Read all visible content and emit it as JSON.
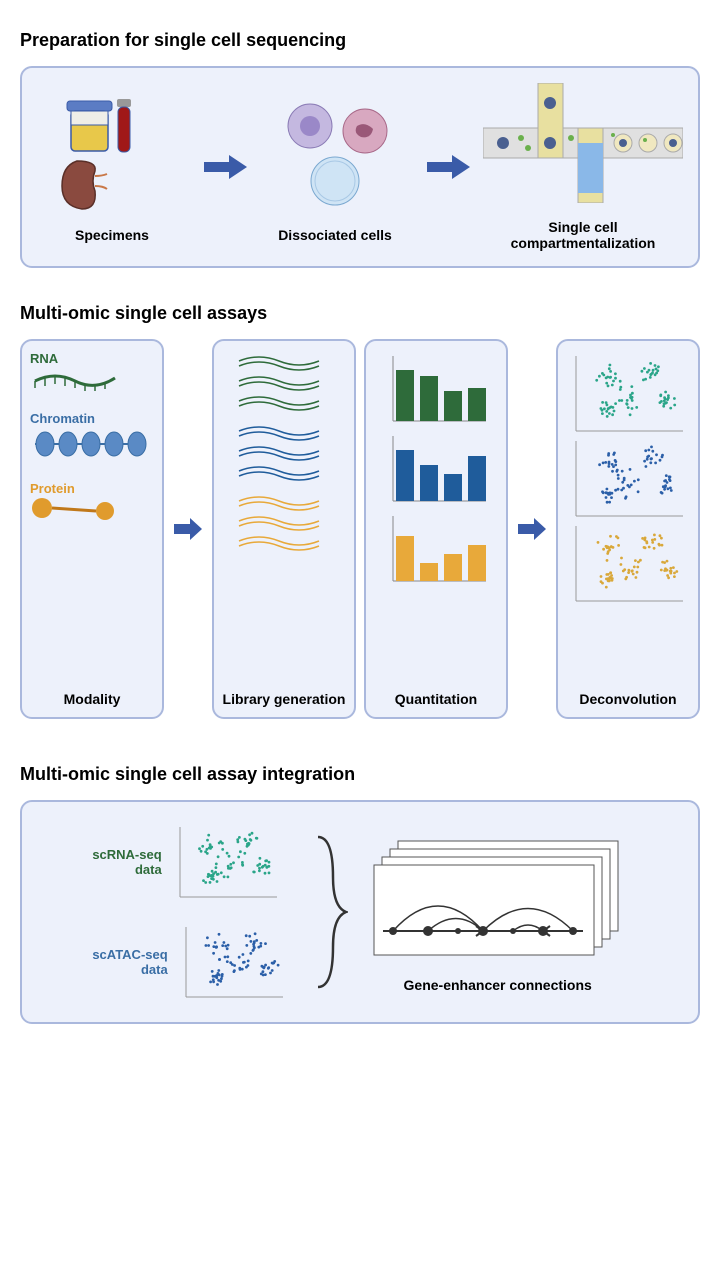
{
  "section1": {
    "title": "Preparation for single cell sequencing",
    "steps": [
      "Specimens",
      "Dissociated cells",
      "Single cell\ncompartmentalization"
    ]
  },
  "section2": {
    "title": "Multi-omic single cell assays",
    "columns": [
      "Modality",
      "Library generation",
      "Quantitation",
      "Deconvolution"
    ],
    "modalities": [
      {
        "name": "RNA",
        "color": "#2e6b3a"
      },
      {
        "name": "Chromatin",
        "color": "#3a6ea5"
      },
      {
        "name": "Protein",
        "color": "#e09b2d"
      }
    ],
    "bar_charts": [
      {
        "color": "#2e6b3a",
        "values": [
          85,
          75,
          50,
          55
        ]
      },
      {
        "color": "#1f5c9b",
        "values": [
          85,
          60,
          45,
          75
        ]
      },
      {
        "color": "#e8a93a",
        "values": [
          75,
          30,
          45,
          60
        ]
      }
    ],
    "scatter_colors": [
      "#2aa589",
      "#2b5fa8",
      "#d9a83a"
    ]
  },
  "section3": {
    "title": "Multi-omic single cell assay integration",
    "data1": {
      "label": "scRNA-seq\ndata",
      "color": "#2e6b3a",
      "scatter": "#2aa589"
    },
    "data2": {
      "label": "scATAC-seq\ndata",
      "color": "#3a6ea5",
      "scatter": "#2b5fa8"
    },
    "result_label": "Gene-enhancer connections"
  },
  "colors": {
    "panel_border": "#aab8dd",
    "panel_bg": "#edf1fb",
    "arrow": "#3a5ba8"
  }
}
